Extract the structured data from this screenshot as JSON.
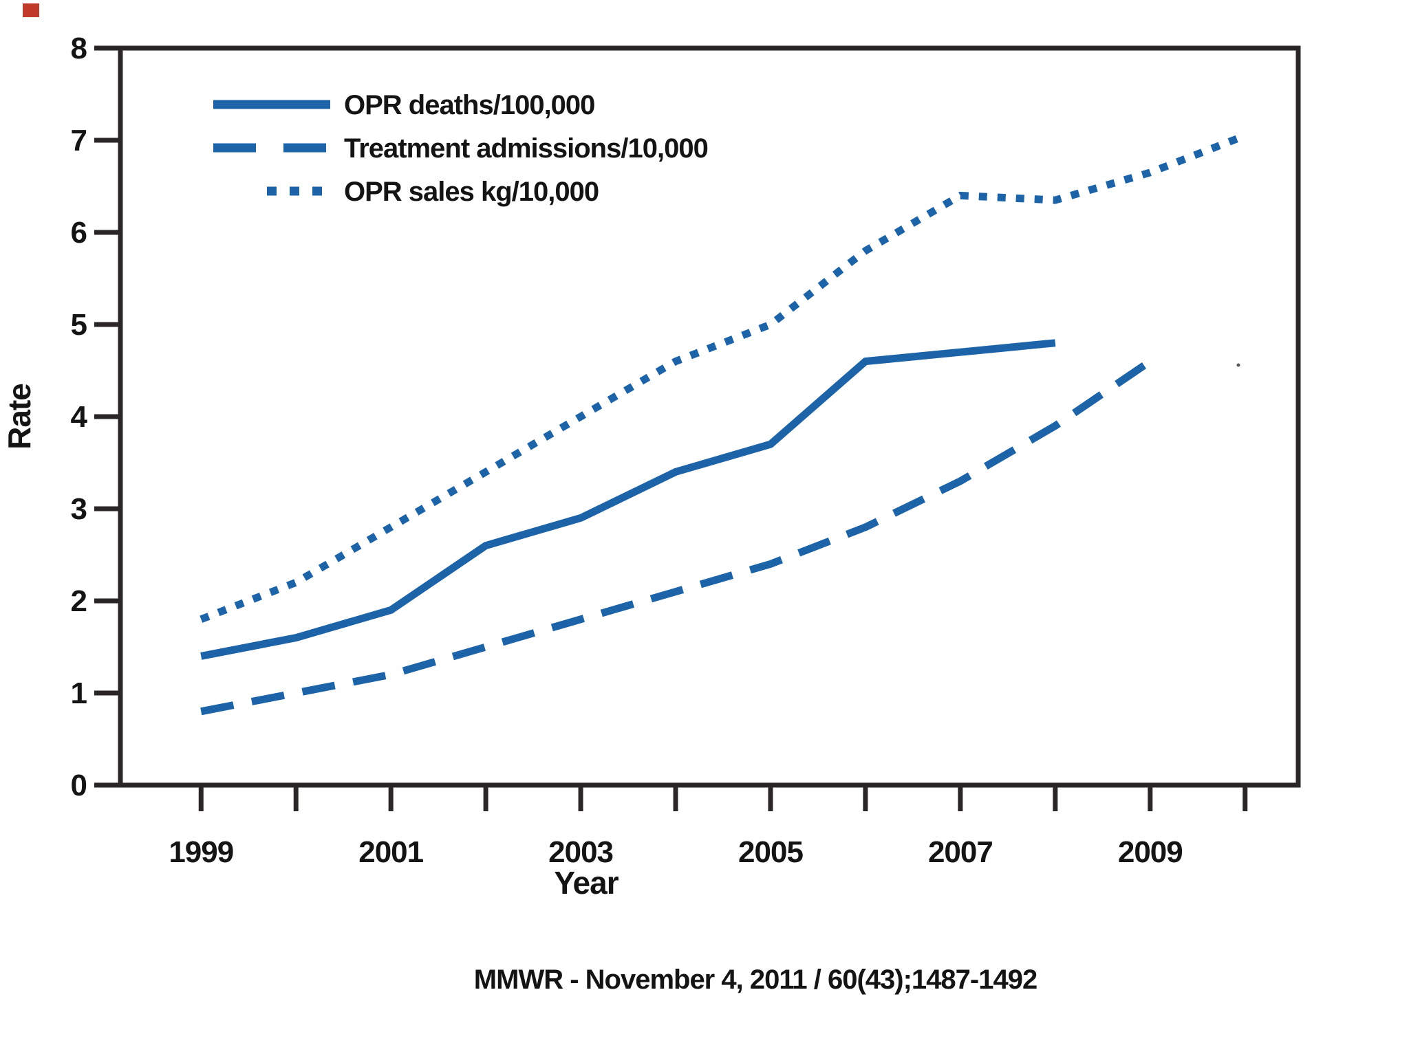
{
  "figure": {
    "caption": "MMWR - November 4, 2011 / 60(43);1487-1492"
  },
  "colors": {
    "background": "#ffffff",
    "line": "#1d63a8",
    "axis": "#2a2627",
    "text": "#141414",
    "stray_dot": "#555555",
    "corner_artifact": "#c23b2a"
  },
  "chart_data": {
    "type": "line",
    "title": "",
    "xlabel": "Year",
    "ylabel": "Rate",
    "xlim": [
      1998.15,
      2010.56
    ],
    "ylim": [
      0,
      8
    ],
    "y_ticks": [
      0,
      1,
      2,
      3,
      4,
      5,
      6,
      7,
      8
    ],
    "x_ticks": [
      1999,
      2000,
      2001,
      2002,
      2003,
      2004,
      2005,
      2006,
      2007,
      2008,
      2009,
      2010
    ],
    "x_tick_labels": [
      1999,
      2001,
      2003,
      2005,
      2007,
      2009
    ],
    "grid": false,
    "legend_position": "top-left-inside",
    "series": [
      {
        "name": "OPR deaths/100,000",
        "style": "solid",
        "x": [
          1999,
          2000,
          2001,
          2002,
          2003,
          2004,
          2005,
          2006,
          2007,
          2008
        ],
        "values": [
          1.4,
          1.6,
          1.9,
          2.6,
          2.9,
          3.4,
          3.7,
          4.6,
          4.7,
          4.8
        ]
      },
      {
        "name": "Treatment admissions/10,000",
        "style": "dashed",
        "x": [
          1999,
          2000,
          2001,
          2002,
          2003,
          2004,
          2005,
          2006,
          2007,
          2008,
          2009
        ],
        "values": [
          0.8,
          1.0,
          1.2,
          1.5,
          1.8,
          2.1,
          2.4,
          2.8,
          3.3,
          3.9,
          4.6
        ]
      },
      {
        "name": "OPR sales kg/10,000",
        "style": "dotted",
        "x": [
          1999,
          2000,
          2001,
          2002,
          2003,
          2004,
          2005,
          2006,
          2007,
          2008,
          2009,
          2010
        ],
        "values": [
          1.8,
          2.2,
          2.8,
          3.4,
          4.0,
          4.6,
          5.0,
          5.8,
          6.4,
          6.35,
          6.65,
          7.05
        ]
      }
    ]
  }
}
